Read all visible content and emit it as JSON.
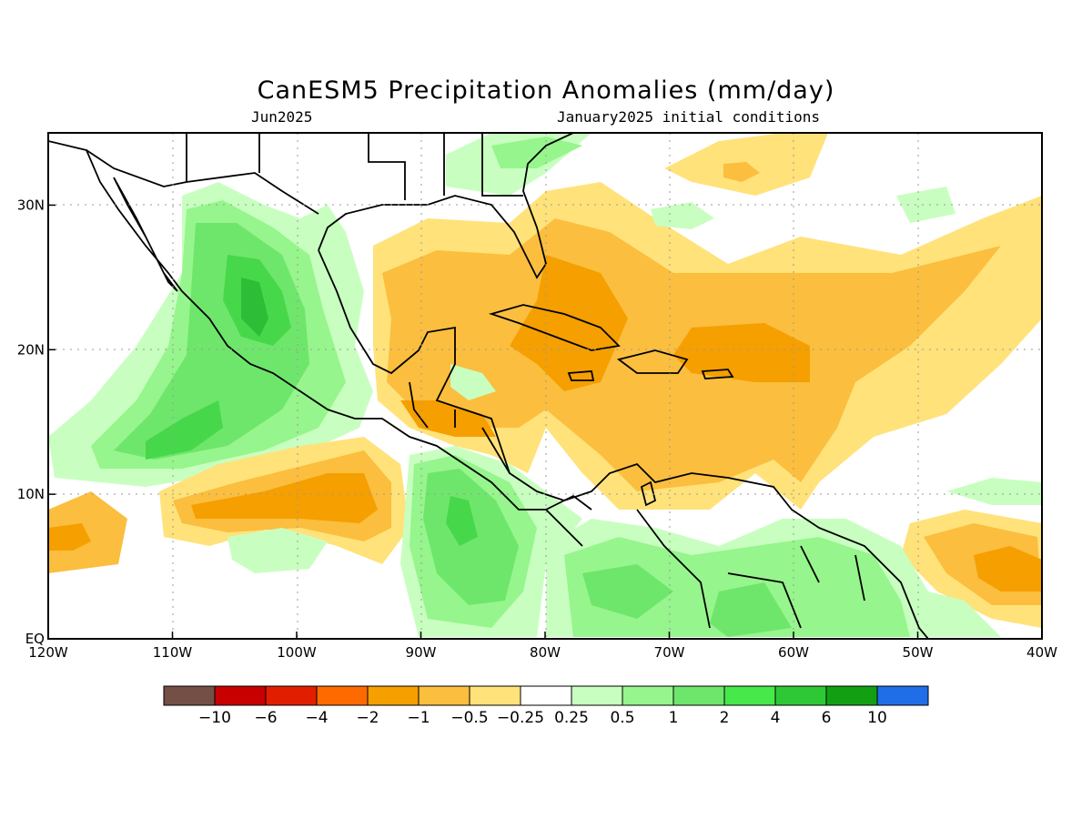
{
  "title": "CanESM5 Precipitation Anomalies (mm/day)",
  "valid_month": "Jun2025",
  "init_label": "January2025 initial conditions",
  "colors": {
    "strong_neg": "#f59f00",
    "neg": "#fbbe3e",
    "weak_neg": "#ffe27a",
    "weak_pos": "#c8ffc0",
    "pos": "#96f58c",
    "pos2": "#6ee66b",
    "pos3": "#46d84a",
    "pos4": "#2ebd36"
  },
  "map": {
    "lon_range": [
      -120,
      -40
    ],
    "lat_range": [
      0,
      35
    ],
    "x_ticks": [
      "120W",
      "110W",
      "100W",
      "90W",
      "80W",
      "70W",
      "60W",
      "50W",
      "40W"
    ],
    "y_ticks": [
      "EQ",
      "10N",
      "20N",
      "30N"
    ],
    "x_tick_values": [
      -120,
      -110,
      -100,
      -90,
      -80,
      -70,
      -60,
      -50,
      -40
    ],
    "y_tick_values": [
      0,
      10,
      20,
      30
    ]
  },
  "colorbar": {
    "colors": [
      "#734f46",
      "#c80000",
      "#e21e00",
      "#ff6a00",
      "#f59f00",
      "#fbbe3e",
      "#ffe27a",
      "#ffffff",
      "#c8ffc0",
      "#96f58c",
      "#6ee66b",
      "#46e84a",
      "#2ec836",
      "#12a012",
      "#1f6ee8"
    ],
    "labels": [
      "−10",
      "−6",
      "−4",
      "−2",
      "−1",
      "−0.5",
      "−0.25",
      "0.25",
      "0.5",
      "1",
      "2",
      "4",
      "6",
      "10"
    ]
  }
}
